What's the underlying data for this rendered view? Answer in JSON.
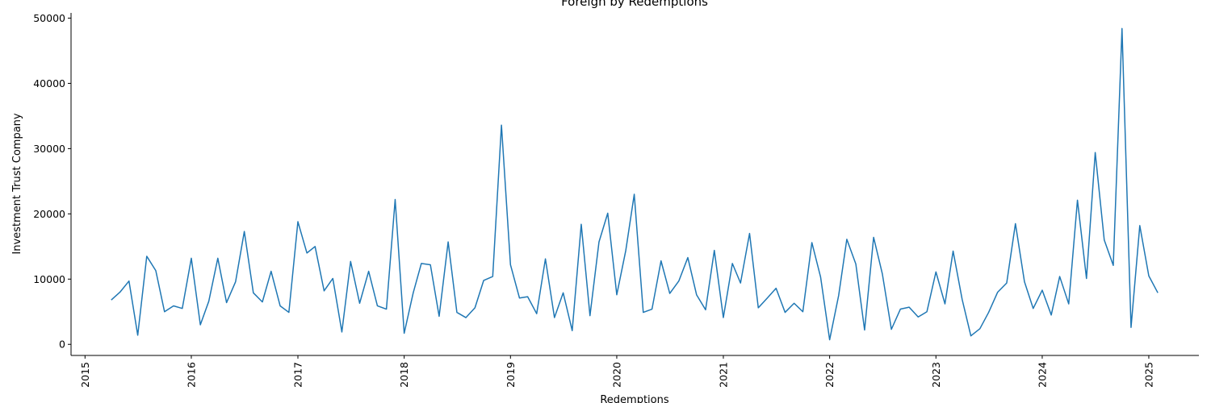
{
  "chart_data": {
    "type": "line",
    "title": "Foreign by Redemptions",
    "xlabel": "Redemptions",
    "ylabel": "Investment Trust Company",
    "x_tick_labels": [
      "2015",
      "2016",
      "2017",
      "2018",
      "2019",
      "2020",
      "2021",
      "2022",
      "2023",
      "2024",
      "2025"
    ],
    "y_tick_labels": [
      "0",
      "10000",
      "20000",
      "30000",
      "40000",
      "50000"
    ],
    "y_tick_values": [
      0,
      10000,
      20000,
      30000,
      40000,
      50000
    ],
    "xlim": [
      "2014-11-14",
      "2025-06-22"
    ],
    "ylim": [
      -1700,
      50800
    ],
    "grid": false,
    "line_color": "#1f77b4",
    "series": [
      {
        "x": [
          "2015-04-01",
          "2015-05-01",
          "2015-06-01",
          "2015-07-01",
          "2015-08-01",
          "2015-09-01",
          "2015-10-01",
          "2015-11-01",
          "2015-12-01",
          "2016-01-01",
          "2016-02-01",
          "2016-03-01",
          "2016-04-01",
          "2016-05-01",
          "2016-06-01",
          "2016-07-01",
          "2016-08-01",
          "2016-09-01",
          "2016-10-01",
          "2016-11-01",
          "2016-12-01",
          "2017-01-01",
          "2017-02-01",
          "2017-03-01",
          "2017-04-01",
          "2017-05-01",
          "2017-06-01",
          "2017-07-01",
          "2017-08-01",
          "2017-09-01",
          "2017-10-01",
          "2017-11-01",
          "2017-12-01",
          "2018-01-01",
          "2018-02-01",
          "2018-03-01",
          "2018-04-01",
          "2018-05-01",
          "2018-06-01",
          "2018-07-01",
          "2018-08-01",
          "2018-09-01",
          "2018-10-01",
          "2018-11-01",
          "2018-12-01",
          "2019-01-01",
          "2019-02-01",
          "2019-03-01",
          "2019-04-01",
          "2019-05-01",
          "2019-06-01",
          "2019-07-01",
          "2019-08-01",
          "2019-09-01",
          "2019-10-01",
          "2019-11-01",
          "2019-12-01",
          "2020-01-01",
          "2020-02-01",
          "2020-03-01",
          "2020-04-01",
          "2020-05-01",
          "2020-06-01",
          "2020-07-01",
          "2020-08-01",
          "2020-09-01",
          "2020-10-01",
          "2020-11-01",
          "2020-12-01",
          "2021-01-01",
          "2021-02-01",
          "2021-03-01",
          "2021-04-01",
          "2021-05-01",
          "2021-06-01",
          "2021-07-01",
          "2021-08-01",
          "2021-09-01",
          "2021-10-01",
          "2021-11-01",
          "2021-12-01",
          "2022-01-01",
          "2022-02-01",
          "2022-03-01",
          "2022-04-01",
          "2022-05-01",
          "2022-06-01",
          "2022-07-01",
          "2022-08-01",
          "2022-09-01",
          "2022-10-01",
          "2022-11-01",
          "2022-12-01",
          "2023-01-01",
          "2023-02-01",
          "2023-03-01",
          "2023-04-01",
          "2023-05-01",
          "2023-06-01",
          "2023-07-01",
          "2023-08-01",
          "2023-09-01",
          "2023-10-01",
          "2023-11-01",
          "2023-12-01",
          "2024-01-01",
          "2024-02-01",
          "2024-03-01",
          "2024-04-01",
          "2024-05-01",
          "2024-06-01",
          "2024-07-01",
          "2024-08-01",
          "2024-09-01",
          "2024-10-01",
          "2024-11-01",
          "2024-12-01",
          "2025-01-01",
          "2025-02-01"
        ],
        "y": [
          6800,
          8000,
          9700,
          1400,
          13500,
          11300,
          5000,
          5900,
          5500,
          13200,
          3000,
          6600,
          13200,
          6400,
          9600,
          17300,
          7900,
          6500,
          11200,
          5900,
          4900,
          18800,
          14000,
          15000,
          8200,
          10100,
          1900,
          12700,
          6300,
          11200,
          5900,
          5400,
          22200,
          1700,
          7900,
          12400,
          12200,
          4300,
          15700,
          4900,
          4100,
          5600,
          9800,
          10400,
          33600,
          12200,
          7100,
          7300,
          4700,
          13100,
          4100,
          7900,
          2100,
          18400,
          4400,
          15700,
          20100,
          7600,
          14400,
          23000,
          4900,
          5400,
          12800,
          7800,
          9700,
          13300,
          7600,
          5300,
          14400,
          4100,
          12400,
          9400,
          17000,
          5600,
          7100,
          8600,
          4900,
          6300,
          5000,
          15600,
          10300,
          700,
          7500,
          16100,
          12300,
          2200,
          16400,
          10800,
          2300,
          5400,
          5700,
          4200,
          5000,
          11100,
          6200,
          14300,
          6900,
          1300,
          2400,
          4900,
          8000,
          9400,
          18500,
          9600,
          5500,
          8300,
          4500,
          10400,
          6200,
          22100,
          10100,
          29400,
          16000,
          12100,
          48400,
          2600,
          18200,
          10500,
          7900
        ]
      }
    ]
  }
}
